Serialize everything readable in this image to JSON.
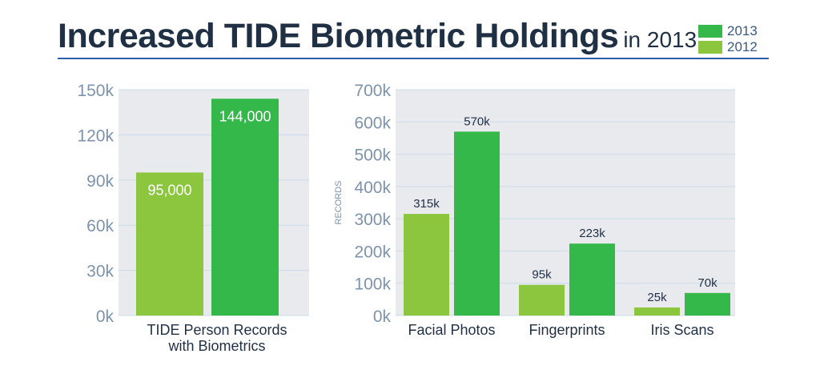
{
  "header": {
    "title_main": "Increased TIDE Biometric Holdings",
    "title_sub": "in 2013"
  },
  "legend": [
    {
      "label": "2013",
      "color": "#34b84a"
    },
    {
      "label": "2012",
      "color": "#8cc63f"
    }
  ],
  "colors": {
    "series_2013": "#34b84a",
    "series_2012": "#8cc63f",
    "panel_background": "#e9eaee",
    "grid": "#c9ddea",
    "tick_label": "#7d93ad",
    "data_label": "#1f2f44",
    "axis_label": "#7d93ad"
  },
  "chart_data": [
    {
      "type": "bar",
      "title": "",
      "xlabel": "",
      "ylabel": "",
      "ylim": [
        0,
        150000
      ],
      "yticks": [
        0,
        30000,
        60000,
        90000,
        120000,
        150000
      ],
      "ytick_labels": [
        "0k",
        "30k",
        "60k",
        "90k",
        "120k",
        "150k"
      ],
      "categories": [
        "TIDE Person Records with Biometrics"
      ],
      "category_label_lines": [
        [
          "TIDE Person Records",
          "with Biometrics"
        ]
      ],
      "series": [
        {
          "name": "2012",
          "values": [
            95000
          ],
          "labels": [
            "95,000"
          ]
        },
        {
          "name": "2013",
          "values": [
            144000
          ],
          "labels": [
            "144,000"
          ]
        }
      ],
      "grid": true,
      "label_position": "inside-top",
      "legend_position": "top-right"
    },
    {
      "type": "bar",
      "title": "",
      "xlabel": "",
      "ylabel": "RECORDS",
      "ylim": [
        0,
        700000
      ],
      "yticks": [
        0,
        100000,
        200000,
        300000,
        400000,
        500000,
        600000,
        700000
      ],
      "ytick_labels": [
        "0k",
        "100k",
        "200k",
        "300k",
        "400k",
        "500k",
        "600k",
        "700k"
      ],
      "categories": [
        "Facial Photos",
        "Fingerprints",
        "Iris Scans"
      ],
      "category_label_lines": [
        [
          "Facial Photos"
        ],
        [
          "Fingerprints"
        ],
        [
          "Iris Scans"
        ]
      ],
      "series": [
        {
          "name": "2012",
          "values": [
            315000,
            95000,
            25000
          ],
          "labels": [
            "315k",
            "95k",
            "25k"
          ]
        },
        {
          "name": "2013",
          "values": [
            570000,
            223000,
            70000
          ],
          "labels": [
            "570k",
            "223k",
            "70k"
          ]
        }
      ],
      "grid": true,
      "label_position": "above",
      "legend_position": "top-right"
    }
  ]
}
